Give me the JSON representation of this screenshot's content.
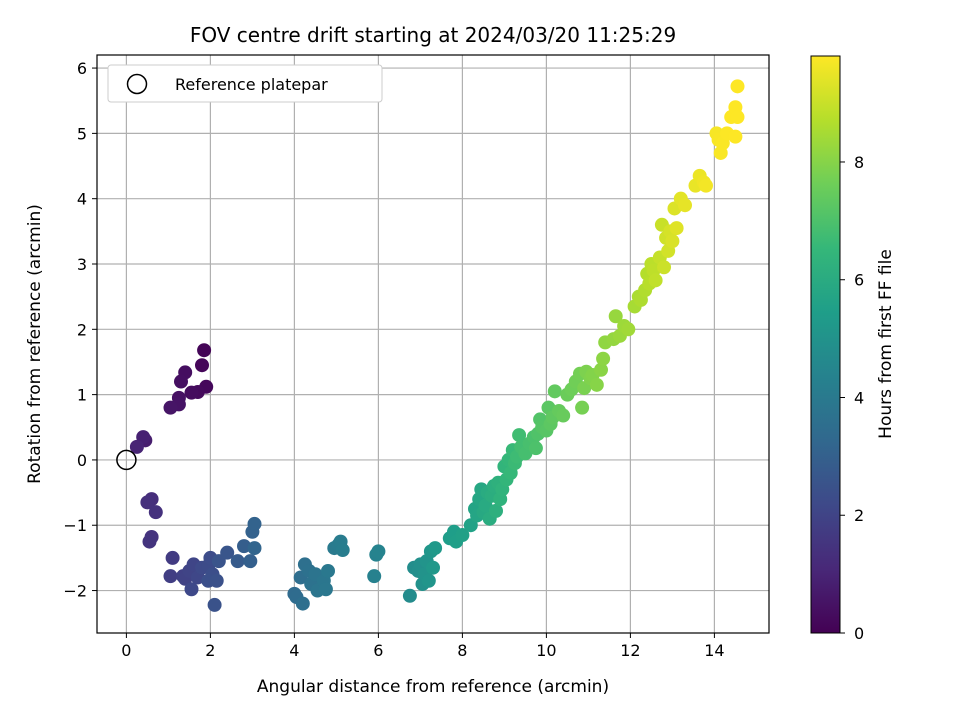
{
  "chart_data": {
    "type": "scatter",
    "title": "FOV centre drift starting at 2024/03/20 11:25:29",
    "xlabel": "Angular distance from reference (arcmin)",
    "ylabel": "Rotation from reference (arcmin)",
    "xlim": [
      -0.7,
      15.3
    ],
    "ylim": [
      -2.65,
      6.2
    ],
    "xticks": [
      0,
      2,
      4,
      6,
      8,
      10,
      12,
      14
    ],
    "yticks": [
      -2,
      -1,
      0,
      1,
      2,
      3,
      4,
      5,
      6
    ],
    "grid": true,
    "legend": {
      "position": "top-left",
      "entries": [
        "Reference platepar"
      ]
    },
    "reference_point": {
      "x": 0,
      "y": 0
    },
    "colorbar": {
      "label": "Hours from first FF file",
      "range": [
        0,
        9.8
      ],
      "ticks": [
        0,
        2,
        4,
        6,
        8
      ],
      "colormap": [
        "#440154",
        "#482878",
        "#3e4989",
        "#31688e",
        "#26828e",
        "#1f9e89",
        "#35b779",
        "#6ece58",
        "#b5de2b",
        "#fde725"
      ]
    },
    "series": [
      {
        "points": [
          [
            1.85,
            1.68,
            0.1
          ],
          [
            1.8,
            1.45,
            0.15
          ],
          [
            1.9,
            1.12,
            0.2
          ],
          [
            1.7,
            1.04,
            0.25
          ],
          [
            1.55,
            1.03,
            0.3
          ],
          [
            1.4,
            1.34,
            0.35
          ],
          [
            1.3,
            1.2,
            0.4
          ],
          [
            1.25,
            0.95,
            0.45
          ],
          [
            1.25,
            0.85,
            0.5
          ],
          [
            1.05,
            0.8,
            0.55
          ],
          [
            0.45,
            0.3,
            0.8
          ],
          [
            0.4,
            0.35,
            0.9
          ],
          [
            0.25,
            0.2,
            1.0
          ],
          [
            0.6,
            -0.6,
            1.3
          ],
          [
            0.5,
            -0.65,
            1.35
          ],
          [
            0.7,
            -0.8,
            1.4
          ],
          [
            0.6,
            -1.18,
            1.45
          ],
          [
            0.55,
            -1.25,
            1.5
          ],
          [
            1.1,
            -1.5,
            1.7
          ],
          [
            1.05,
            -1.78,
            1.8
          ],
          [
            1.35,
            -1.78,
            1.9
          ],
          [
            1.4,
            -1.82,
            1.95
          ],
          [
            1.5,
            -1.7,
            2.0
          ],
          [
            1.6,
            -1.6,
            2.05
          ],
          [
            1.7,
            -1.8,
            2.1
          ],
          [
            1.55,
            -1.98,
            2.15
          ],
          [
            1.8,
            -1.65,
            2.2
          ],
          [
            1.95,
            -1.62,
            2.25
          ],
          [
            2.0,
            -1.5,
            2.3
          ],
          [
            2.05,
            -1.75,
            2.35
          ],
          [
            1.95,
            -1.85,
            2.4
          ],
          [
            2.15,
            -1.85,
            2.45
          ],
          [
            2.1,
            -2.22,
            2.5
          ],
          [
            2.2,
            -1.55,
            2.55
          ],
          [
            2.4,
            -1.42,
            2.6
          ],
          [
            2.65,
            -1.55,
            2.8
          ],
          [
            2.8,
            -1.32,
            2.9
          ],
          [
            2.95,
            -1.55,
            3.0
          ],
          [
            3.0,
            -1.1,
            3.05
          ],
          [
            3.05,
            -0.98,
            3.1
          ],
          [
            3.05,
            -1.35,
            3.15
          ],
          [
            4.0,
            -2.05,
            3.4
          ],
          [
            4.05,
            -2.1,
            3.45
          ],
          [
            4.15,
            -1.8,
            3.5
          ],
          [
            4.2,
            -2.2,
            3.55
          ],
          [
            4.25,
            -1.6,
            3.6
          ],
          [
            4.35,
            -1.7,
            3.65
          ],
          [
            4.4,
            -1.9,
            3.7
          ],
          [
            4.5,
            -1.75,
            3.75
          ],
          [
            4.55,
            -2.0,
            3.8
          ],
          [
            4.7,
            -1.85,
            3.85
          ],
          [
            4.75,
            -1.98,
            3.9
          ],
          [
            4.8,
            -1.7,
            3.95
          ],
          [
            4.95,
            -1.35,
            4.0
          ],
          [
            5.05,
            -1.3,
            4.05
          ],
          [
            5.1,
            -1.25,
            4.1
          ],
          [
            5.15,
            -1.38,
            4.15
          ],
          [
            5.9,
            -1.78,
            4.3
          ],
          [
            5.95,
            -1.45,
            4.35
          ],
          [
            6.0,
            -1.4,
            4.4
          ],
          [
            6.75,
            -2.08,
            4.7
          ],
          [
            6.85,
            -1.65,
            4.8
          ],
          [
            6.95,
            -1.7,
            4.85
          ],
          [
            7.0,
            -1.6,
            4.9
          ],
          [
            7.05,
            -1.9,
            4.95
          ],
          [
            7.1,
            -1.75,
            5.0
          ],
          [
            7.15,
            -1.55,
            5.05
          ],
          [
            7.2,
            -1.85,
            5.1
          ],
          [
            7.25,
            -1.4,
            5.15
          ],
          [
            7.3,
            -1.65,
            5.2
          ],
          [
            7.35,
            -1.35,
            5.25
          ],
          [
            7.7,
            -1.2,
            5.4
          ],
          [
            7.8,
            -1.1,
            5.45
          ],
          [
            7.85,
            -1.25,
            5.5
          ],
          [
            8.0,
            -1.15,
            5.55
          ],
          [
            8.2,
            -1.0,
            5.6
          ],
          [
            8.3,
            -0.75,
            5.7
          ],
          [
            8.35,
            -0.85,
            5.75
          ],
          [
            8.4,
            -0.6,
            5.8
          ],
          [
            8.45,
            -0.45,
            5.85
          ],
          [
            8.5,
            -0.8,
            5.9
          ],
          [
            8.55,
            -0.7,
            5.95
          ],
          [
            8.6,
            -0.5,
            6.0
          ],
          [
            8.65,
            -0.9,
            6.05
          ],
          [
            8.7,
            -0.55,
            6.1
          ],
          [
            8.75,
            -0.4,
            6.15
          ],
          [
            8.8,
            -0.78,
            6.2
          ],
          [
            8.85,
            -0.35,
            6.25
          ],
          [
            8.9,
            -0.6,
            6.3
          ],
          [
            8.95,
            -0.45,
            6.35
          ],
          [
            9.0,
            -0.1,
            6.4
          ],
          [
            9.05,
            -0.3,
            6.45
          ],
          [
            9.1,
            0.0,
            6.5
          ],
          [
            9.15,
            -0.2,
            6.55
          ],
          [
            9.2,
            0.15,
            6.6
          ],
          [
            9.25,
            -0.05,
            6.65
          ],
          [
            9.3,
            0.05,
            6.7
          ],
          [
            9.35,
            0.38,
            6.75
          ],
          [
            9.4,
            0.2,
            6.8
          ],
          [
            9.5,
            0.1,
            6.85
          ],
          [
            9.6,
            0.25,
            6.9
          ],
          [
            9.7,
            0.35,
            6.95
          ],
          [
            9.75,
            0.18,
            7.0
          ],
          [
            9.8,
            0.4,
            7.05
          ],
          [
            9.85,
            0.62,
            7.1
          ],
          [
            9.9,
            0.5,
            7.15
          ],
          [
            10.0,
            0.45,
            7.2
          ],
          [
            10.05,
            0.8,
            7.25
          ],
          [
            10.1,
            0.55,
            7.3
          ],
          [
            10.15,
            0.65,
            7.35
          ],
          [
            10.2,
            1.05,
            7.4
          ],
          [
            10.3,
            0.75,
            7.45
          ],
          [
            10.4,
            0.68,
            7.5
          ],
          [
            10.5,
            1.0,
            7.55
          ],
          [
            10.6,
            1.08,
            7.6
          ],
          [
            10.7,
            1.2,
            7.65
          ],
          [
            10.8,
            1.32,
            7.7
          ],
          [
            10.85,
            0.8,
            7.75
          ],
          [
            10.9,
            1.1,
            7.8
          ],
          [
            10.95,
            1.35,
            7.85
          ],
          [
            11.05,
            1.25,
            7.9
          ],
          [
            11.1,
            1.3,
            7.95
          ],
          [
            11.2,
            1.15,
            8.0
          ],
          [
            11.3,
            1.38,
            8.05
          ],
          [
            11.35,
            1.55,
            8.1
          ],
          [
            11.4,
            1.8,
            8.15
          ],
          [
            11.6,
            1.85,
            8.2
          ],
          [
            11.65,
            2.2,
            8.25
          ],
          [
            11.75,
            1.9,
            8.3
          ],
          [
            11.85,
            2.05,
            8.35
          ],
          [
            11.95,
            2.0,
            8.4
          ],
          [
            12.1,
            2.35,
            8.5
          ],
          [
            12.2,
            2.5,
            8.55
          ],
          [
            12.25,
            2.45,
            8.6
          ],
          [
            12.35,
            2.6,
            8.65
          ],
          [
            12.4,
            2.85,
            8.7
          ],
          [
            12.45,
            2.7,
            8.75
          ],
          [
            12.5,
            3.0,
            8.8
          ],
          [
            12.55,
            2.9,
            8.85
          ],
          [
            12.6,
            2.75,
            8.9
          ],
          [
            12.7,
            3.1,
            8.95
          ],
          [
            12.75,
            3.6,
            9.0
          ],
          [
            12.8,
            2.95,
            9.05
          ],
          [
            12.85,
            3.4,
            9.1
          ],
          [
            12.9,
            3.2,
            9.15
          ],
          [
            12.95,
            3.5,
            9.2
          ],
          [
            13.0,
            3.35,
            9.25
          ],
          [
            13.05,
            3.85,
            9.3
          ],
          [
            13.1,
            3.55,
            9.35
          ],
          [
            13.2,
            4.0,
            9.4
          ],
          [
            13.3,
            3.9,
            9.45
          ],
          [
            13.55,
            4.2,
            9.5
          ],
          [
            13.65,
            4.35,
            9.55
          ],
          [
            13.75,
            4.25,
            9.6
          ],
          [
            13.8,
            4.2,
            9.65
          ],
          [
            14.05,
            5.0,
            9.7
          ],
          [
            14.1,
            4.9,
            9.72
          ],
          [
            14.15,
            4.7,
            9.74
          ],
          [
            14.2,
            4.85,
            9.76
          ],
          [
            14.3,
            5.0,
            9.78
          ],
          [
            14.4,
            5.25,
            9.8
          ],
          [
            14.5,
            4.95,
            9.8
          ],
          [
            14.5,
            5.4,
            9.8
          ],
          [
            14.55,
            5.25,
            9.8
          ],
          [
            14.55,
            5.72,
            9.8
          ]
        ]
      }
    ]
  }
}
